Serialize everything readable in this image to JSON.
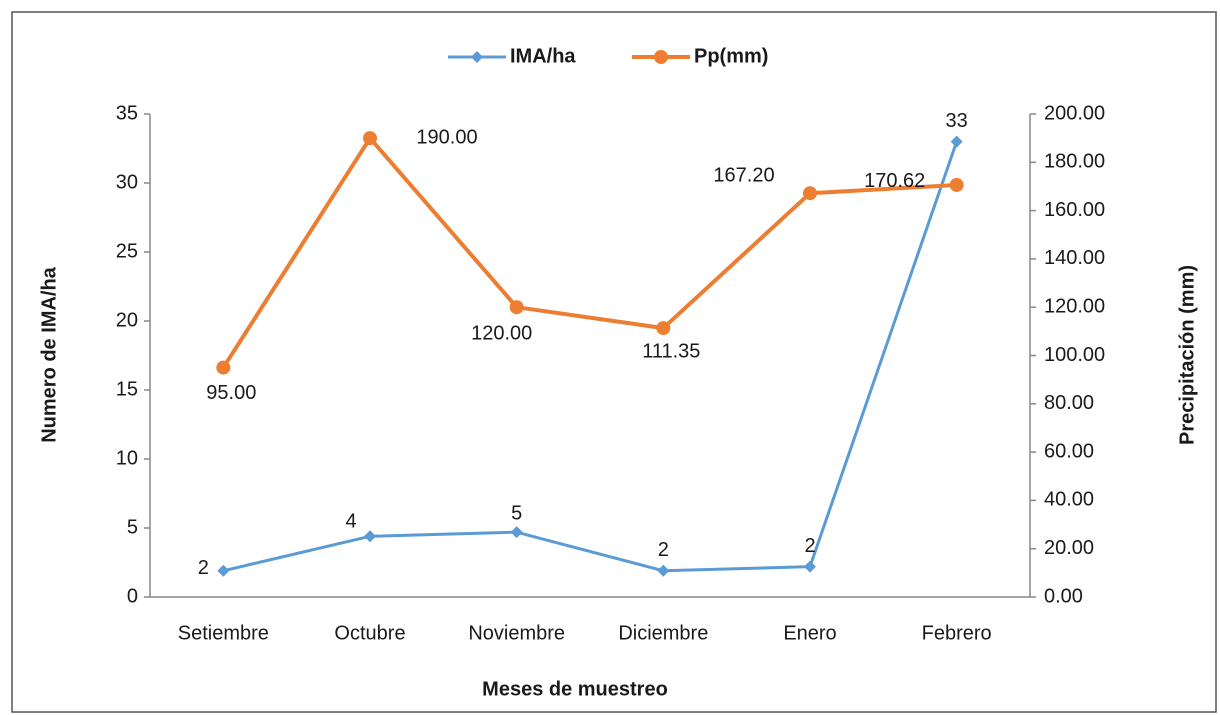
{
  "chart_data": {
    "type": "line",
    "categories": [
      "Setiembre",
      "Octubre",
      "Noviembre",
      "Diciembre",
      "Enero",
      "Febrero"
    ],
    "series": [
      {
        "name": "IMA/ha",
        "color": "#5b9bd5",
        "axis": "y",
        "marker": "diamond",
        "values": [
          1.9,
          4.4,
          4.7,
          1.9,
          2.2,
          33
        ],
        "value_labels": [
          "2",
          "4",
          "5",
          "2",
          "2",
          "33"
        ]
      },
      {
        "name": "Pp(mm)",
        "color": "#ed7d31",
        "axis": "y2",
        "marker": "circle",
        "values": [
          95,
          190,
          120,
          111.35,
          167.2,
          170.62
        ],
        "value_labels": [
          "95.00",
          "190.00",
          "120.00",
          "111.35",
          "167.20",
          "170.62"
        ]
      }
    ],
    "ylabel": "Numero de IMA/ha",
    "y2label": "Precipitación (mm)",
    "xlabel": "Meses de muestreo",
    "ylim": [
      0,
      35
    ],
    "yticks": [
      0,
      5,
      10,
      15,
      20,
      25,
      30,
      35
    ],
    "y2lim": [
      0,
      200
    ],
    "y2ticks": [
      {
        "value": 0,
        "label": "0.00"
      },
      {
        "value": 20,
        "label": "20.00"
      },
      {
        "value": 40,
        "label": "40.00"
      },
      {
        "value": 60,
        "label": "60.00"
      },
      {
        "value": 80,
        "label": "80.00"
      },
      {
        "value": 100,
        "label": "100.00"
      },
      {
        "value": 120,
        "label": "120.00"
      },
      {
        "value": 140,
        "label": "140.00"
      },
      {
        "value": 160,
        "label": "160.00"
      },
      {
        "value": 180,
        "label": "180.00"
      },
      {
        "value": 200,
        "label": "200.00"
      }
    ],
    "legend": "top",
    "grid": false
  }
}
